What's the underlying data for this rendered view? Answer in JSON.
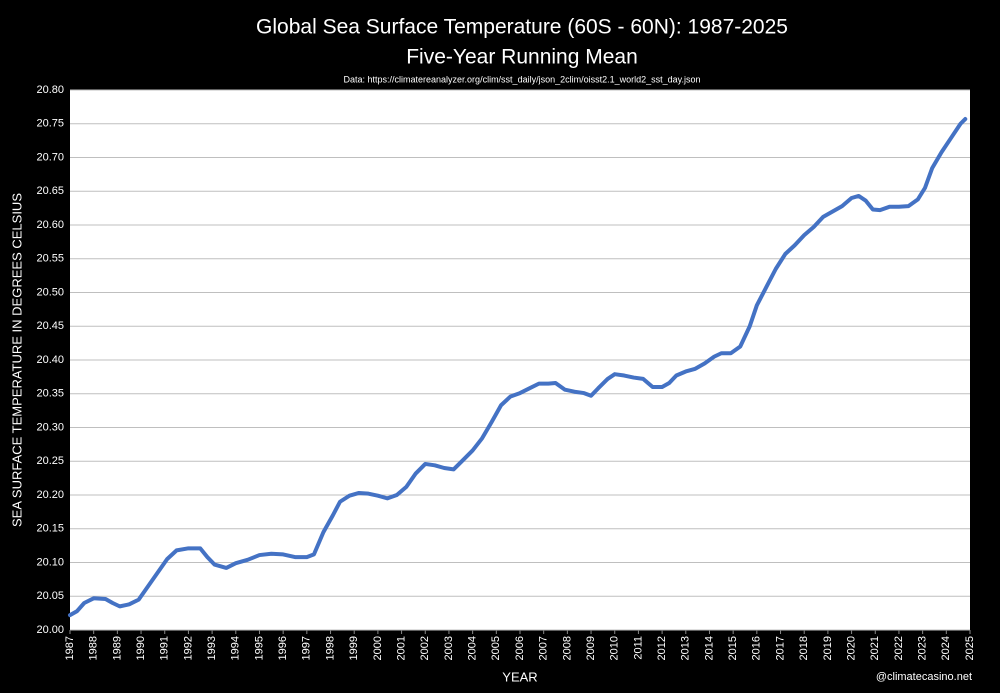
{
  "chart_data": {
    "type": "line",
    "title": "Global Sea Surface Temperature (60S - 60N): 1987-2025",
    "subtitle": "Five-Year Running Mean",
    "source": "Data: https://climatereanalyzer.org/clim/sst_daily/json_2clim/oisst2.1_world2_sst_day.json",
    "x_label": "YEAR",
    "y_label": "SEA SURFACE TEMPERATURE IN DEGREES CELSIUS",
    "watermark": "@climatecasino.net",
    "x": [
      1987.0,
      1987.3,
      1987.6,
      1988.0,
      1988.5,
      1988.8,
      1989.1,
      1989.5,
      1989.9,
      1990.3,
      1990.7,
      1991.1,
      1991.5,
      1992.0,
      1992.5,
      1992.8,
      1993.1,
      1993.6,
      1994.0,
      1994.5,
      1995.0,
      1995.5,
      1996.0,
      1996.5,
      1997.0,
      1997.3,
      1997.7,
      1998.1,
      1998.4,
      1998.8,
      1999.2,
      1999.6,
      2000.0,
      2000.4,
      2000.8,
      2001.2,
      2001.6,
      2002.0,
      2002.4,
      2002.8,
      2003.2,
      2003.6,
      2004.0,
      2004.4,
      2004.8,
      2005.2,
      2005.6,
      2006.0,
      2006.4,
      2006.8,
      2007.2,
      2007.5,
      2007.9,
      2008.3,
      2008.7,
      2009.0,
      2009.3,
      2009.7,
      2010.0,
      2010.4,
      2010.8,
      2011.2,
      2011.6,
      2012.0,
      2012.3,
      2012.6,
      2013.0,
      2013.4,
      2013.8,
      2014.2,
      2014.5,
      2014.9,
      2015.3,
      2015.7,
      2016.0,
      2016.4,
      2016.8,
      2017.2,
      2017.6,
      2018.0,
      2018.4,
      2018.8,
      2019.2,
      2019.6,
      2020.0,
      2020.3,
      2020.6,
      2020.9,
      2021.2,
      2021.6,
      2022.0,
      2022.4,
      2022.8,
      2023.1,
      2023.4,
      2023.8,
      2024.2,
      2024.6,
      2024.8
    ],
    "series": [
      {
        "name": "Five-Year Running Mean",
        "color": "#4472c4",
        "values": [
          20.022,
          20.028,
          20.04,
          20.047,
          20.046,
          20.04,
          20.035,
          20.038,
          20.045,
          20.065,
          20.085,
          20.105,
          20.118,
          20.121,
          20.121,
          20.108,
          20.097,
          20.092,
          20.099,
          20.104,
          20.111,
          20.113,
          20.112,
          20.108,
          20.108,
          20.112,
          20.145,
          20.17,
          20.19,
          20.199,
          20.203,
          20.202,
          20.199,
          20.195,
          20.2,
          20.212,
          20.232,
          20.246,
          20.244,
          20.24,
          20.238,
          20.252,
          20.266,
          20.284,
          20.308,
          20.333,
          20.346,
          20.351,
          20.358,
          20.365,
          20.365,
          20.366,
          20.356,
          20.353,
          20.351,
          20.347,
          20.358,
          20.372,
          20.379,
          20.377,
          20.374,
          20.372,
          20.36,
          20.36,
          20.366,
          20.377,
          20.383,
          20.387,
          20.395,
          20.405,
          20.41,
          20.41,
          20.42,
          20.45,
          20.481,
          20.508,
          20.535,
          20.557,
          20.57,
          20.585,
          20.597,
          20.612,
          20.62,
          20.628,
          20.64,
          20.643,
          20.636,
          20.623,
          20.622,
          20.627,
          20.627,
          20.628,
          20.638,
          20.655,
          20.684,
          20.708,
          20.729,
          20.75,
          20.757
        ]
      }
    ],
    "xlim": [
      1987,
      2025
    ],
    "xticks": [
      1987,
      1988,
      1989,
      1990,
      1991,
      1992,
      1993,
      1994,
      1995,
      1996,
      1997,
      1998,
      1999,
      2000,
      2001,
      2002,
      2003,
      2004,
      2005,
      2006,
      2007,
      2008,
      2009,
      2010,
      2011,
      2012,
      2013,
      2014,
      2015,
      2016,
      2017,
      2018,
      2019,
      2020,
      2021,
      2022,
      2023,
      2024,
      2025
    ],
    "ylim": [
      20.0,
      20.8
    ],
    "yticks": [
      {
        "value": 20.0,
        "label": "20.00"
      },
      20.05,
      {
        "value": 20.1,
        "label": "20.10"
      },
      20.15,
      {
        "value": 20.2,
        "label": "20.20"
      },
      20.25,
      {
        "value": 20.3,
        "label": "20.30"
      },
      20.35,
      {
        "value": 20.4,
        "label": "20.40"
      },
      20.45,
      {
        "value": 20.5,
        "label": "20.50"
      },
      20.55,
      {
        "value": 20.6,
        "label": "20.60"
      },
      20.65,
      {
        "value": 20.7,
        "label": "20.70"
      },
      20.75,
      {
        "value": 20.8,
        "label": "20.80"
      }
    ],
    "grid": true
  }
}
